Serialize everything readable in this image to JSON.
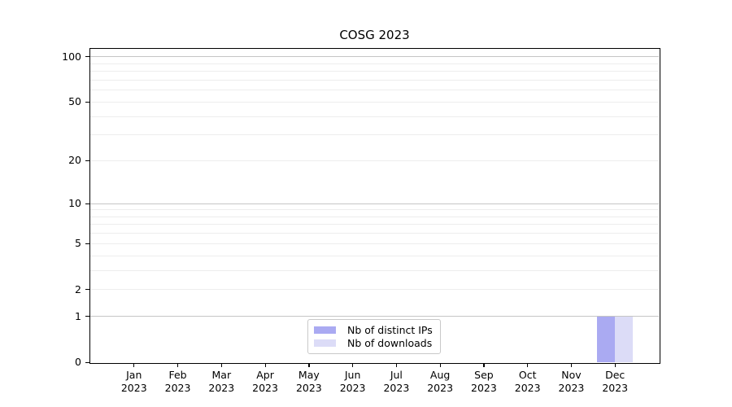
{
  "chart_data": {
    "type": "bar",
    "title": "COSG 2023",
    "categories": [
      "Jan 2023",
      "Feb 2023",
      "Mar 2023",
      "Apr 2023",
      "May 2023",
      "Jun 2023",
      "Jul 2023",
      "Aug 2023",
      "Sep 2023",
      "Oct 2023",
      "Nov 2023",
      "Dec 2023"
    ],
    "series": [
      {
        "name": "Nb of distinct IPs",
        "color": "#aaaaf2",
        "values": [
          0,
          0,
          0,
          0,
          0,
          0,
          0,
          0,
          0,
          0,
          0,
          1
        ]
      },
      {
        "name": "Nb of downloads",
        "color": "#dcdcf7",
        "values": [
          0,
          0,
          0,
          0,
          0,
          0,
          0,
          0,
          0,
          0,
          0,
          1
        ]
      }
    ],
    "y_axis": {
      "scale": "log1p",
      "tick_values": [
        0,
        1,
        2,
        5,
        10,
        20,
        50,
        100
      ],
      "major_gridline_values": [
        1,
        10,
        100
      ],
      "minor_gridline_values": [
        2,
        5,
        20,
        50,
        3,
        4,
        6,
        7,
        8,
        9,
        30,
        40,
        60,
        70,
        80,
        90
      ],
      "range": [
        0,
        100
      ]
    },
    "x_axis": {
      "label_lines_per_category": 2
    },
    "legend": {
      "position": "lower-center",
      "entries": [
        "Nb of distinct IPs",
        "Nb of downloads"
      ]
    },
    "grid": true
  },
  "colors": {
    "background": "#ffffff",
    "axis": "#000000",
    "text": "#000000",
    "major_gridline": "#c5c5c5",
    "minor_gridline": "#ededed",
    "legend_border": "#c9c9c9",
    "bar_distinct_ips": "#aaaaf2",
    "bar_downloads": "#dcdcf7"
  }
}
